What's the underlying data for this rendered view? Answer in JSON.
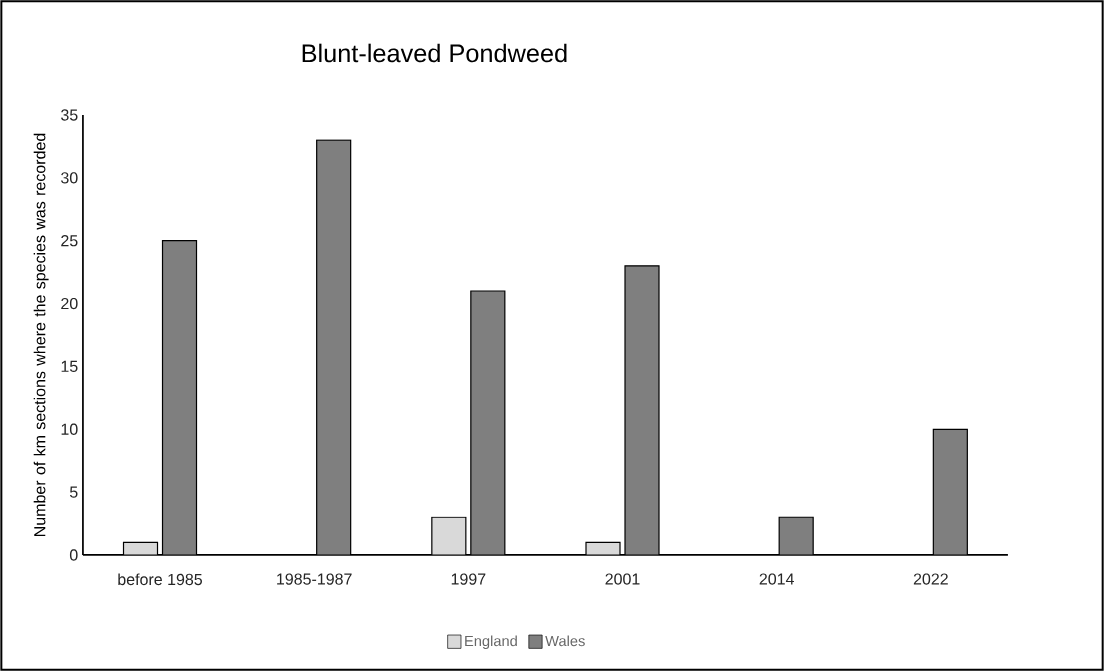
{
  "chart_data": {
    "type": "bar",
    "title": "Blunt-leaved Pondweed",
    "ylabel": "Number of km sections where the species was recorded",
    "categories": [
      "before 1985",
      "1985-1987",
      "1997",
      "2001",
      "2014",
      "2022"
    ],
    "series": [
      {
        "name": "England",
        "color": "#d9d9d9",
        "values": [
          1,
          0,
          3,
          1,
          0,
          0
        ]
      },
      {
        "name": "Wales",
        "color": "#7f7f7f",
        "values": [
          25,
          33,
          21,
          23,
          3,
          10
        ]
      }
    ],
    "ylim": [
      0,
      35
    ],
    "yticks": [
      0,
      5,
      10,
      15,
      20,
      25,
      30,
      35
    ],
    "grid": false,
    "legend": "bottom"
  }
}
